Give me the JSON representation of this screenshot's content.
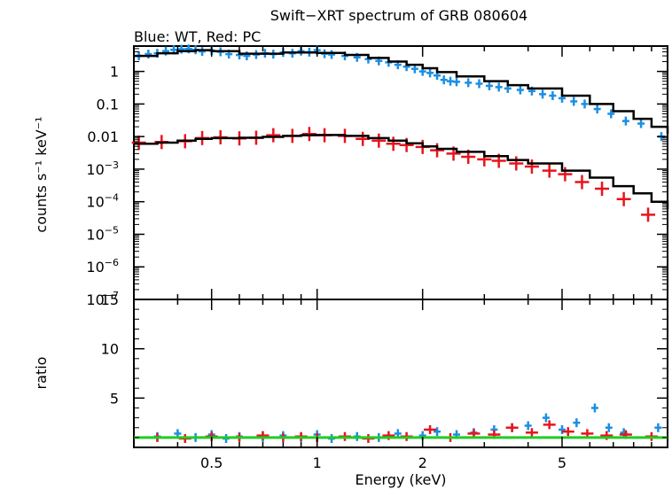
{
  "chart_data": [
    {
      "type": "line",
      "title": "Swift−XRT spectrum of GRB 080604",
      "subtitle": "Blue: WT, Red: PC",
      "ylabel": "counts s⁻¹ keV⁻¹",
      "yscale": "log",
      "xscale": "log",
      "xlim": [
        0.3,
        10
      ],
      "ylim": [
        1e-07,
        6
      ],
      "yticks": [
        {
          "value": 1,
          "label": "1"
        },
        {
          "value": 0.1,
          "label": "0.1"
        },
        {
          "value": 0.01,
          "label": "0.01"
        },
        {
          "value": 0.001,
          "base": "10",
          "exp": "−3"
        },
        {
          "value": 0.0001,
          "base": "10",
          "exp": "−4"
        },
        {
          "value": 1e-05,
          "base": "10",
          "exp": "−5"
        },
        {
          "value": 1e-06,
          "base": "10",
          "exp": "−6"
        },
        {
          "value": 1e-07,
          "base": "10",
          "exp": "−7"
        }
      ],
      "series": [
        {
          "color": "#1a8fe3",
          "points": [
            [
              0.31,
              3.0
            ],
            [
              0.33,
              3.4
            ],
            [
              0.35,
              3.6
            ],
            [
              0.37,
              4.2
            ],
            [
              0.39,
              4.6
            ],
            [
              0.41,
              4.8
            ],
            [
              0.43,
              4.9
            ],
            [
              0.45,
              4.6
            ],
            [
              0.47,
              4.1
            ],
            [
              0.5,
              4.4
            ],
            [
              0.53,
              4.0
            ],
            [
              0.56,
              3.4
            ],
            [
              0.6,
              3.2
            ],
            [
              0.63,
              3.0
            ],
            [
              0.67,
              3.3
            ],
            [
              0.71,
              3.6
            ],
            [
              0.75,
              3.4
            ],
            [
              0.8,
              3.8
            ],
            [
              0.85,
              3.6
            ],
            [
              0.9,
              4.2
            ],
            [
              0.95,
              3.9
            ],
            [
              1.0,
              4.5
            ],
            [
              1.05,
              3.5
            ],
            [
              1.1,
              3.3
            ],
            [
              1.2,
              3.0
            ],
            [
              1.3,
              2.7
            ],
            [
              1.4,
              2.4
            ],
            [
              1.5,
              2.1
            ],
            [
              1.6,
              1.9
            ],
            [
              1.7,
              1.6
            ],
            [
              1.8,
              1.4
            ],
            [
              1.9,
              1.2
            ],
            [
              2.0,
              1.0
            ],
            [
              2.1,
              0.9
            ],
            [
              2.2,
              0.75
            ],
            [
              2.3,
              0.55
            ],
            [
              2.4,
              0.5
            ],
            [
              2.5,
              0.48
            ],
            [
              2.7,
              0.45
            ],
            [
              2.9,
              0.42
            ],
            [
              3.1,
              0.36
            ],
            [
              3.3,
              0.33
            ],
            [
              3.5,
              0.3
            ],
            [
              3.8,
              0.27
            ],
            [
              4.1,
              0.25
            ],
            [
              4.4,
              0.2
            ],
            [
              4.7,
              0.18
            ],
            [
              5.0,
              0.15
            ],
            [
              5.4,
              0.12
            ],
            [
              5.8,
              0.1
            ],
            [
              6.3,
              0.07
            ],
            [
              6.9,
              0.05
            ],
            [
              7.6,
              0.03
            ],
            [
              8.4,
              0.025
            ],
            [
              9.6,
              0.01
            ]
          ]
        },
        {
          "color": "#e8141c",
          "points": [
            [
              0.31,
              0.0065
            ],
            [
              0.36,
              0.0068
            ],
            [
              0.42,
              0.0072
            ],
            [
              0.47,
              0.009
            ],
            [
              0.53,
              0.0095
            ],
            [
              0.6,
              0.0088
            ],
            [
              0.67,
              0.0092
            ],
            [
              0.75,
              0.011
            ],
            [
              0.85,
              0.0105
            ],
            [
              0.95,
              0.012
            ],
            [
              1.05,
              0.011
            ],
            [
              1.2,
              0.0105
            ],
            [
              1.35,
              0.0085
            ],
            [
              1.5,
              0.0075
            ],
            [
              1.65,
              0.006
            ],
            [
              1.8,
              0.0055
            ],
            [
              2.0,
              0.0048
            ],
            [
              2.2,
              0.0038
            ],
            [
              2.45,
              0.003
            ],
            [
              2.7,
              0.0024
            ],
            [
              3.0,
              0.002
            ],
            [
              3.3,
              0.0018
            ],
            [
              3.7,
              0.0015
            ],
            [
              4.1,
              0.0012
            ],
            [
              4.6,
              0.0009
            ],
            [
              5.1,
              0.0007
            ],
            [
              5.7,
              0.0004
            ],
            [
              6.5,
              0.00025
            ],
            [
              7.5,
              0.00012
            ],
            [
              8.8,
              4e-05
            ]
          ]
        },
        {
          "color": "#000000",
          "model": "WT",
          "points": [
            [
              0.3,
              3.0
            ],
            [
              0.35,
              3.6
            ],
            [
              0.4,
              4.2
            ],
            [
              0.45,
              4.5
            ],
            [
              0.5,
              4.2
            ],
            [
              0.6,
              3.5
            ],
            [
              0.7,
              3.5
            ],
            [
              0.8,
              3.8
            ],
            [
              0.9,
              3.8
            ],
            [
              1.0,
              3.7
            ],
            [
              1.2,
              3.2
            ],
            [
              1.4,
              2.6
            ],
            [
              1.6,
              2.0
            ],
            [
              1.8,
              1.6
            ],
            [
              2.0,
              1.25
            ],
            [
              2.2,
              0.95
            ],
            [
              2.5,
              0.7
            ],
            [
              3.0,
              0.5
            ],
            [
              3.5,
              0.38
            ],
            [
              4.0,
              0.3
            ],
            [
              5.0,
              0.18
            ],
            [
              6.0,
              0.1
            ],
            [
              7.0,
              0.06
            ],
            [
              8.0,
              0.035
            ],
            [
              9.0,
              0.02
            ],
            [
              10.0,
              0.012
            ]
          ]
        },
        {
          "color": "#000000",
          "model": "PC",
          "points": [
            [
              0.3,
              0.006
            ],
            [
              0.35,
              0.0065
            ],
            [
              0.4,
              0.0075
            ],
            [
              0.45,
              0.0085
            ],
            [
              0.5,
              0.009
            ],
            [
              0.6,
              0.0092
            ],
            [
              0.7,
              0.0098
            ],
            [
              0.8,
              0.0105
            ],
            [
              0.9,
              0.011
            ],
            [
              1.0,
              0.0112
            ],
            [
              1.2,
              0.0105
            ],
            [
              1.4,
              0.009
            ],
            [
              1.6,
              0.0075
            ],
            [
              1.8,
              0.0062
            ],
            [
              2.0,
              0.005
            ],
            [
              2.2,
              0.0042
            ],
            [
              2.5,
              0.0034
            ],
            [
              3.0,
              0.0025
            ],
            [
              3.5,
              0.0019
            ],
            [
              4.0,
              0.0015
            ],
            [
              5.0,
              0.0009
            ],
            [
              6.0,
              0.00055
            ],
            [
              7.0,
              0.0003
            ],
            [
              8.0,
              0.00018
            ],
            [
              9.0,
              0.0001
            ],
            [
              10.0,
              6e-05
            ]
          ]
        }
      ]
    },
    {
      "type": "scatter",
      "ylabel": "ratio",
      "xlabel": "Energy (keV)",
      "xscale": "log",
      "xlim": [
        0.3,
        10
      ],
      "ylim": [
        0,
        15
      ],
      "yticks": [
        5,
        10,
        15
      ],
      "xticks": [
        {
          "value": 0.5,
          "label": "0.5"
        },
        {
          "value": 1,
          "label": "1"
        },
        {
          "value": 2,
          "label": "2"
        },
        {
          "value": 5,
          "label": "5"
        }
      ],
      "reference_line": {
        "value": 1,
        "color": "#22cc22"
      },
      "series": [
        {
          "color": "#1a8fe3",
          "points": [
            [
              0.35,
              1.1
            ],
            [
              0.4,
              1.4
            ],
            [
              0.45,
              1.0
            ],
            [
              0.5,
              1.3
            ],
            [
              0.55,
              0.9
            ],
            [
              0.6,
              1.1
            ],
            [
              0.7,
              1.0
            ],
            [
              0.8,
              1.2
            ],
            [
              0.9,
              1.0
            ],
            [
              1.0,
              1.3
            ],
            [
              1.1,
              0.9
            ],
            [
              1.3,
              1.1
            ],
            [
              1.5,
              1.0
            ],
            [
              1.7,
              1.4
            ],
            [
              2.0,
              1.2
            ],
            [
              2.2,
              1.6
            ],
            [
              2.5,
              1.3
            ],
            [
              2.8,
              1.5
            ],
            [
              3.2,
              1.8
            ],
            [
              3.6,
              2.0
            ],
            [
              4.0,
              2.2
            ],
            [
              4.5,
              3.0
            ],
            [
              5.0,
              1.8
            ],
            [
              5.5,
              2.5
            ],
            [
              6.2,
              4.0
            ],
            [
              6.8,
              2.0
            ],
            [
              7.5,
              1.5
            ],
            [
              9.4,
              2.0
            ]
          ]
        },
        {
          "color": "#e8141c",
          "points": [
            [
              0.35,
              1.0
            ],
            [
              0.42,
              0.9
            ],
            [
              0.5,
              1.1
            ],
            [
              0.6,
              1.0
            ],
            [
              0.7,
              1.2
            ],
            [
              0.8,
              1.0
            ],
            [
              0.9,
              1.1
            ],
            [
              1.0,
              1.0
            ],
            [
              1.2,
              1.1
            ],
            [
              1.4,
              0.9
            ],
            [
              1.6,
              1.2
            ],
            [
              1.8,
              1.1
            ],
            [
              2.1,
              1.8
            ],
            [
              2.4,
              1.0
            ],
            [
              2.8,
              1.4
            ],
            [
              3.2,
              1.3
            ],
            [
              3.6,
              2.0
            ],
            [
              4.1,
              1.5
            ],
            [
              4.6,
              2.3
            ],
            [
              5.2,
              1.6
            ],
            [
              5.9,
              1.4
            ],
            [
              6.7,
              1.2
            ],
            [
              7.6,
              1.3
            ],
            [
              9.0,
              1.1
            ]
          ]
        }
      ]
    }
  ]
}
